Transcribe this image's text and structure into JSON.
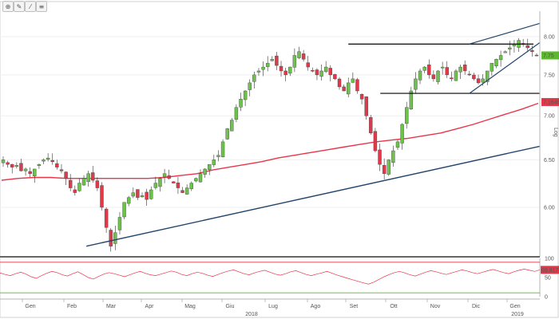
{
  "toolbar": [
    {
      "icon": "crosshair-icon",
      "glyph": "⊕"
    },
    {
      "icon": "pencil-icon",
      "glyph": "✎"
    },
    {
      "icon": "trend-line-icon",
      "glyph": "⁄"
    },
    {
      "icon": "fibonacci-icon",
      "glyph": "≡"
    }
  ],
  "chart_data": [
    {
      "type": "candlestick",
      "title": "",
      "ylabel": "Log",
      "y_scale": "log",
      "ylim": [
        5.55,
        8.35
      ],
      "y_ticks": [
        "8.00",
        "7.50",
        "7.00",
        "6.50",
        "6.00"
      ],
      "x_month_labels": [
        "Gen",
        "Feb",
        "Mar",
        "Apr",
        "Mag",
        "Giu",
        "Lug",
        "Ago",
        "Set",
        "Ott",
        "Nov",
        "Dic",
        "Gen"
      ],
      "x_year_labels": [
        "2018",
        "2019"
      ],
      "price_labels": [
        {
          "text": "7.75",
          "value": 7.75,
          "color": "#5cb82c"
        },
        {
          "text": "7.1646",
          "value": 7.1646,
          "color": "#e03a4a"
        }
      ],
      "colors": {
        "up": "#6cc24a",
        "down": "#e03a4a",
        "ma": "#e8354a",
        "trendline": "#24466b",
        "channel": "#000000"
      },
      "moving_average": {
        "name": "",
        "values": [
          6.28,
          6.3,
          6.31,
          6.31,
          6.3,
          6.3,
          6.3,
          6.3,
          6.3,
          6.3,
          6.31,
          6.33,
          6.35,
          6.39,
          6.42,
          6.45,
          6.48,
          6.52,
          6.55,
          6.58,
          6.61,
          6.64,
          6.67,
          6.7,
          6.72,
          6.74,
          6.77,
          6.8,
          6.85,
          6.9,
          6.96,
          7.02,
          7.08,
          7.15
        ]
      },
      "trendline": {
        "from": {
          "x": 0.16,
          "y": 5.62
        },
        "to": {
          "x": 1.0,
          "y": 6.65
        }
      },
      "support_trendline_dates": [
        "2018-02-21",
        "2019-02-28"
      ],
      "resistance_level": 7.9,
      "support_level": 7.27,
      "rising_wedge": {
        "upper_start": 7.9,
        "upper_end": 8.18,
        "lower_start": 7.27,
        "lower_end": 7.92
      },
      "ohlc_close_path": [
        6.5,
        6.45,
        6.42,
        6.44,
        6.38,
        6.4,
        6.35,
        6.4,
        6.45,
        6.5,
        6.52,
        6.48,
        6.42,
        6.38,
        6.3,
        6.2,
        6.15,
        6.25,
        6.3,
        6.35,
        6.28,
        6.2,
        6.0,
        5.8,
        5.62,
        5.75,
        5.9,
        6.05,
        6.1,
        6.15,
        6.1,
        6.12,
        6.08,
        6.18,
        6.25,
        6.3,
        6.35,
        6.3,
        6.25,
        6.2,
        6.15,
        6.2,
        6.25,
        6.3,
        6.35,
        6.4,
        6.45,
        6.5,
        6.55,
        6.7,
        6.85,
        6.95,
        7.1,
        7.2,
        7.3,
        7.4,
        7.5,
        7.55,
        7.6,
        7.65,
        7.7,
        7.62,
        7.55,
        7.5,
        7.6,
        7.75,
        7.8,
        7.7,
        7.6,
        7.55,
        7.5,
        7.55,
        7.6,
        7.5,
        7.45,
        7.35,
        7.3,
        7.4,
        7.45,
        7.3,
        7.2,
        7.0,
        6.8,
        6.6,
        6.45,
        6.35,
        6.5,
        6.6,
        6.7,
        6.9,
        7.1,
        7.3,
        7.45,
        7.55,
        7.6,
        7.5,
        7.45,
        7.55,
        7.6,
        7.5,
        7.45,
        7.55,
        7.6,
        7.55,
        7.5,
        7.45,
        7.4,
        7.45,
        7.55,
        7.65,
        7.7,
        7.75,
        7.8,
        7.85,
        7.9,
        7.95,
        7.9,
        7.85,
        7.8,
        7.75
      ]
    },
    {
      "type": "line",
      "title": "",
      "name": "",
      "ylim": [
        0,
        100
      ],
      "y_ticks": [
        "100",
        "50",
        "0"
      ],
      "last_value_label": "69.81746",
      "levels": [
        {
          "value": 90,
          "color": "#e03a4a"
        },
        {
          "value": 10,
          "color": "#5cb82c"
        }
      ],
      "values": [
        62,
        58,
        55,
        60,
        64,
        59,
        52,
        48,
        55,
        61,
        66,
        63,
        57,
        54,
        60,
        65,
        58,
        50,
        46,
        53,
        59,
        63,
        60,
        56,
        52,
        57,
        62,
        66,
        61,
        57,
        55,
        59,
        63,
        67,
        64,
        58,
        55,
        60,
        64,
        61,
        56,
        53,
        58,
        63,
        67,
        70,
        65,
        60,
        57,
        62,
        66,
        69,
        64,
        59,
        56,
        60,
        65,
        68,
        63,
        58,
        55,
        59,
        62,
        66,
        61,
        56,
        52,
        48,
        44,
        40,
        36,
        33,
        38,
        45,
        52,
        58,
        63,
        66,
        62,
        57,
        54,
        59,
        64,
        68,
        65,
        61,
        58,
        62,
        66,
        70,
        67,
        63,
        60,
        64,
        68,
        71,
        67,
        63,
        60,
        65,
        69,
        72,
        69,
        66,
        70
      ]
    }
  ]
}
